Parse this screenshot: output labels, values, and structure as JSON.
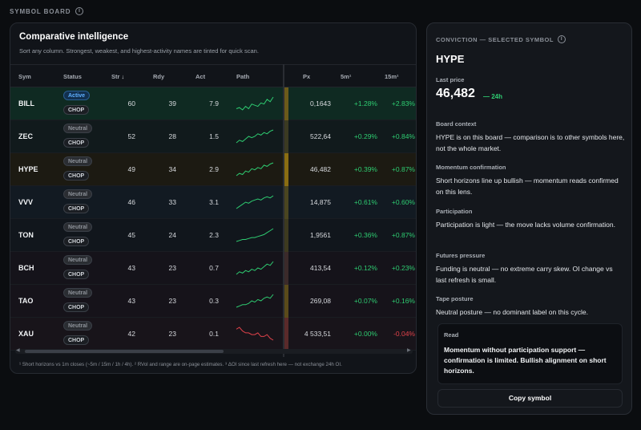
{
  "board": {
    "title": "SYMBOL BOARD",
    "info_icon": "info-circle-icon"
  },
  "comparative": {
    "title": "Comparative intelligence",
    "subtitle": "Sort any column. Strongest, weakest, and highest-activity names are tinted for quick scan.",
    "headers": {
      "sym": "Sym",
      "status": "Status",
      "str": "Str",
      "rdy": "Rdy",
      "act": "Act",
      "path": "Path",
      "px": "Px",
      "m5": "5m¹",
      "m15": "15m¹"
    },
    "sort_icon": "arrow-down-icon",
    "rows": [
      {
        "sym": "BILL",
        "status": "Active",
        "regime": "CHOP",
        "str": "60",
        "rdy": "39",
        "act": "7.9",
        "px": "0,1643",
        "m5": "+1.28%",
        "m15": "+2.83%",
        "trend": "up",
        "tint": "#0f2a22",
        "path": [
          6,
          7,
          5,
          8,
          6,
          10,
          9,
          8,
          11,
          10,
          14,
          12,
          16
        ]
      },
      {
        "sym": "ZEC",
        "status": "Neutral",
        "regime": "CHOP",
        "str": "52",
        "rdy": "28",
        "act": "1.5",
        "px": "522,64",
        "m5": "+0.29%",
        "m15": "+0.84%",
        "trend": "up",
        "tint": "#111a1c",
        "path": [
          4,
          6,
          5,
          7,
          9,
          8,
          9,
          11,
          10,
          12,
          11,
          13,
          14
        ]
      },
      {
        "sym": "HYPE",
        "status": "Neutral",
        "regime": "CHOP",
        "str": "49",
        "rdy": "34",
        "act": "2.9",
        "px": "46,482",
        "m5": "+0.39%",
        "m15": "+0.87%",
        "trend": "up",
        "tint": "#1c1a12",
        "path": [
          3,
          5,
          4,
          7,
          6,
          9,
          8,
          10,
          9,
          12,
          11,
          13,
          14
        ]
      },
      {
        "sym": "VVV",
        "status": "Neutral",
        "regime": "CHOP",
        "str": "46",
        "rdy": "33",
        "act": "3.1",
        "px": "14,875",
        "m5": "+0.61%",
        "m15": "+0.60%",
        "trend": "up",
        "tint": "#121a22",
        "path": [
          2,
          4,
          6,
          8,
          7,
          9,
          10,
          11,
          10,
          12,
          13,
          12,
          14
        ]
      },
      {
        "sym": "TON",
        "status": "Neutral",
        "regime": "CHOP",
        "str": "45",
        "rdy": "24",
        "act": "2.3",
        "px": "1,9561",
        "m5": "+0.36%",
        "m15": "+0.87%",
        "trend": "up",
        "tint": "#11161c",
        "path": [
          2,
          3,
          4,
          4,
          5,
          6,
          6,
          7,
          8,
          9,
          11,
          13,
          15
        ]
      },
      {
        "sym": "BCH",
        "status": "Neutral",
        "regime": "CHOP",
        "str": "43",
        "rdy": "23",
        "act": "0.7",
        "px": "413,54",
        "m5": "+0.12%",
        "m15": "+0.23%",
        "trend": "up",
        "tint": "#15131a",
        "path": [
          4,
          6,
          5,
          7,
          6,
          8,
          7,
          9,
          8,
          10,
          12,
          11,
          14
        ]
      },
      {
        "sym": "TAO",
        "status": "Neutral",
        "regime": "CHOP",
        "str": "43",
        "rdy": "23",
        "act": "0.3",
        "px": "269,08",
        "m5": "+0.07%",
        "m15": "+0.16%",
        "trend": "up",
        "tint": "#16131a",
        "path": [
          3,
          4,
          5,
          5,
          6,
          8,
          7,
          9,
          8,
          10,
          11,
          10,
          13
        ]
      },
      {
        "sym": "XAU",
        "status": "Neutral",
        "regime": "CHOP",
        "str": "42",
        "rdy": "23",
        "act": "0.1",
        "px": "4 533,51",
        "m5": "+0.00%",
        "m15": "-0.04%",
        "trend": "down",
        "tint": "#18141a",
        "path": [
          12,
          13,
          11,
          10,
          10,
          9,
          9,
          10,
          8,
          8,
          9,
          7,
          6
        ]
      }
    ],
    "footnote": "¹ Short horizons vs 1m closes (~5m / 15m / 1h / 4h). ² RVol and range are on-page estimates. ³ ΔOI since last refresh here — not exchange 24h OI.",
    "colors": {
      "up": "#2ecc71",
      "down": "#e0424a",
      "accent": "#f0a800"
    }
  },
  "conviction": {
    "title": "CONVICTION — SELECTED SYMBOL",
    "symbol": "HYPE",
    "last_price_label": "Last price",
    "last_price": "46,482",
    "change": "— 24h",
    "sections": [
      {
        "label": "Board context",
        "text": "HYPE is on this board — comparison is to other symbols here, not the whole market."
      },
      {
        "label": "Momentum confirmation",
        "text": "Short horizons line up bullish — momentum reads confirmed on this lens."
      },
      {
        "label": "Participation",
        "text": "Participation is light — the move lacks volume confirmation."
      },
      {
        "label": "Futures pressure",
        "text": "Funding is neutral — no extreme carry skew. OI change vs last refresh is small."
      },
      {
        "label": "Tape posture",
        "text": "Neutral posture — no dominant label on this cycle."
      }
    ],
    "read_label": "Read",
    "read_text": "Momentum without participation support — confirmation is limited. Bullish alignment on short horizons.",
    "copy_label": "Copy symbol"
  }
}
